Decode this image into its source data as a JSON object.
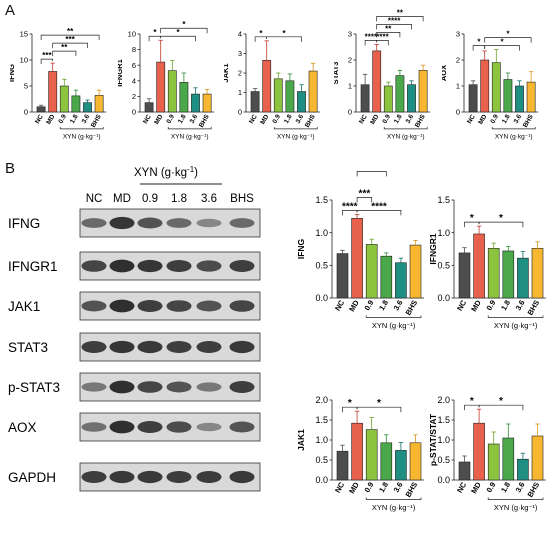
{
  "panels": {
    "a": "A",
    "b": "B"
  },
  "colors": {
    "NC": "#4d4d4d",
    "MD": "#e8614d",
    "0.9": "#8dc43f",
    "1.8": "#4aa84a",
    "3.6": "#1f8f84",
    "BHS": "#f7b731",
    "err_NC": "#4d4d4d",
    "err_MD": "#c0392b",
    "err_0.9": "#6aa32a",
    "err_1.8": "#2f8a35",
    "err_3.6": "#13706a",
    "err_BHS": "#d8951a"
  },
  "blot": {
    "header_title": "XYN (g·kg",
    "header_exp": "-1",
    "header_close": ")",
    "lanes": [
      "NC",
      "MD",
      "0.9",
      "1.8",
      "3.6",
      "BHS"
    ],
    "rows": [
      {
        "label": "IFNG",
        "intensity": [
          0.55,
          0.9,
          0.7,
          0.55,
          0.35,
          0.55
        ]
      },
      {
        "label": "IFNGR1",
        "intensity": [
          0.8,
          0.95,
          0.9,
          0.85,
          0.75,
          0.85
        ]
      },
      {
        "label": "JAK1",
        "intensity": [
          0.7,
          0.95,
          0.85,
          0.8,
          0.7,
          0.8
        ]
      },
      {
        "label": "STAT3",
        "intensity": [
          0.85,
          0.9,
          0.88,
          0.85,
          0.85,
          0.88
        ]
      },
      {
        "label": "p-STAT3",
        "intensity": [
          0.45,
          0.95,
          0.8,
          0.7,
          0.45,
          0.85
        ]
      },
      {
        "label": "AOX",
        "intensity": [
          0.5,
          0.95,
          0.85,
          0.75,
          0.35,
          0.7
        ]
      },
      {
        "label": "GAPDH",
        "intensity": [
          0.85,
          0.88,
          0.88,
          0.86,
          0.86,
          0.88
        ]
      }
    ]
  },
  "chart_data": [
    {
      "id": "a-ifng",
      "type": "bar",
      "ylabel": "IFNG",
      "ylim": [
        0,
        15
      ],
      "yticks": [
        0,
        5,
        10,
        15
      ],
      "categories": [
        "NC",
        "MD",
        "0.9",
        "1.8",
        "3.6",
        "BHS"
      ],
      "values": [
        1,
        7.8,
        5,
        3.1,
        1.8,
        3.2
      ],
      "errors": [
        0.3,
        1.6,
        1.3,
        1.1,
        0.5,
        1.0
      ],
      "xlabel": "XYN (g·kg⁻¹)",
      "significance": [
        {
          "from": 0,
          "to": 1,
          "label": "***",
          "level": 1
        },
        {
          "from": 1,
          "to": 3,
          "label": "**",
          "level": 2
        },
        {
          "from": 1,
          "to": 4,
          "label": "***",
          "level": 3
        },
        {
          "from": 0,
          "to": 5,
          "label": "**",
          "level": 4
        }
      ]
    },
    {
      "id": "a-ifngr1",
      "type": "bar",
      "ylabel": "IFNGR1",
      "ylim": [
        0,
        10
      ],
      "yticks": [
        0,
        2,
        4,
        6,
        8,
        10
      ],
      "categories": [
        "NC",
        "MD",
        "0.9",
        "1.8",
        "3.6",
        "BHS"
      ],
      "values": [
        1.2,
        6.4,
        5.3,
        3.8,
        2.3,
        2.3
      ],
      "errors": [
        0.5,
        2.8,
        1.3,
        1.2,
        0.8,
        0.6
      ],
      "xlabel": "XYN (g·kg⁻¹)",
      "significance": [
        {
          "from": 0,
          "to": 1,
          "label": "*",
          "level": 1
        },
        {
          "from": 1,
          "to": 4,
          "label": "*",
          "level": 1
        },
        {
          "from": 1,
          "to": 5,
          "label": "*",
          "level": 2
        }
      ]
    },
    {
      "id": "a-jak1",
      "type": "bar",
      "ylabel": "JAK1",
      "ylim": [
        0,
        4
      ],
      "yticks": [
        0,
        1,
        2,
        3,
        4
      ],
      "categories": [
        "NC",
        "MD",
        "0.9",
        "1.8",
        "3.6",
        "BHS"
      ],
      "values": [
        1.05,
        2.65,
        1.7,
        1.6,
        1.05,
        2.1
      ],
      "errors": [
        0.15,
        1.0,
        0.3,
        0.35,
        0.35,
        0.4
      ],
      "xlabel": "XYN (g·kg⁻¹)",
      "significance": [
        {
          "from": 0,
          "to": 1,
          "label": "*",
          "level": 1
        },
        {
          "from": 1,
          "to": 4,
          "label": "*",
          "level": 1
        }
      ]
    },
    {
      "id": "a-stat3",
      "type": "bar",
      "ylabel": "STAT3",
      "ylim": [
        0,
        3
      ],
      "yticks": [
        0,
        1,
        2,
        3
      ],
      "categories": [
        "NC",
        "MD",
        "0.9",
        "1.8",
        "3.6",
        "BHS"
      ],
      "values": [
        1.05,
        2.35,
        1.0,
        1.4,
        1.05,
        1.6
      ],
      "errors": [
        0.4,
        0.25,
        0.15,
        0.2,
        0.15,
        0.2
      ],
      "xlabel": "XYN (g·kg⁻¹)",
      "significance": [
        {
          "from": 0,
          "to": 1,
          "label": "****",
          "level": 1
        },
        {
          "from": 1,
          "to": 2,
          "label": "****",
          "level": 1
        },
        {
          "from": 1,
          "to": 3,
          "label": "**",
          "level": 2
        },
        {
          "from": 1,
          "to": 4,
          "label": "****",
          "level": 3
        },
        {
          "from": 1,
          "to": 5,
          "label": "**",
          "level": 4
        }
      ]
    },
    {
      "id": "a-aox",
      "type": "bar",
      "ylabel": "AOX",
      "ylim": [
        0,
        3
      ],
      "yticks": [
        0,
        1,
        2,
        3
      ],
      "categories": [
        "NC",
        "MD",
        "0.9",
        "1.8",
        "3.6",
        "BHS"
      ],
      "values": [
        1.05,
        2.0,
        1.9,
        1.25,
        1.0,
        1.15
      ],
      "errors": [
        0.15,
        0.35,
        0.5,
        0.25,
        0.2,
        0.4
      ],
      "xlabel": "XYN (g·kg⁻¹)",
      "significance": [
        {
          "from": 0,
          "to": 1,
          "label": "*",
          "level": 1
        },
        {
          "from": 1,
          "to": 4,
          "label": "*",
          "level": 1
        },
        {
          "from": 1,
          "to": 5,
          "label": "*",
          "level": 2
        }
      ]
    },
    {
      "id": "b-ifng",
      "type": "bar",
      "ylabel": "IFNG",
      "ylim": [
        0,
        1.5
      ],
      "yticks": [
        0.0,
        0.5,
        1.0,
        1.5
      ],
      "tickDecimals": 1,
      "categories": [
        "NC",
        "MD",
        "0.9",
        "1.8",
        "3.6",
        "BHS"
      ],
      "values": [
        0.68,
        1.22,
        0.82,
        0.64,
        0.54,
        0.81
      ],
      "errors": [
        0.05,
        0.06,
        0.08,
        0.05,
        0.07,
        0.07
      ],
      "xlabel": "XYN (g·kg⁻¹)",
      "significance": [
        {
          "from": 0,
          "to": 1,
          "label": "****",
          "level": 1
        },
        {
          "from": 1,
          "to": 2,
          "label": "***",
          "level": 2
        },
        {
          "from": 1,
          "to": 3,
          "label": "****",
          "level": 4
        },
        {
          "from": 1,
          "to": 4,
          "label": "****",
          "level": 1
        },
        {
          "from": 1,
          "to": 5,
          "label": "***",
          "level": 6
        }
      ]
    },
    {
      "id": "b-ifngr1",
      "type": "bar",
      "ylabel": "IFNGR1",
      "ylim": [
        0,
        1.5
      ],
      "yticks": [
        0.0,
        0.5,
        1.0,
        1.5
      ],
      "tickDecimals": 1,
      "categories": [
        "NC",
        "MD",
        "0.9",
        "1.8",
        "3.6",
        "BHS"
      ],
      "values": [
        0.69,
        0.98,
        0.76,
        0.72,
        0.61,
        0.76
      ],
      "errors": [
        0.08,
        0.12,
        0.08,
        0.07,
        0.1,
        0.1
      ],
      "xlabel": "XYN (g·kg⁻¹)",
      "significance": [
        {
          "from": 0,
          "to": 1,
          "label": "*",
          "level": 1
        },
        {
          "from": 1,
          "to": 4,
          "label": "*",
          "level": 1
        }
      ]
    },
    {
      "id": "b-jak1",
      "type": "bar",
      "ylabel": "JAK1",
      "ylim": [
        0,
        2.0
      ],
      "yticks": [
        0.0,
        0.5,
        1.0,
        1.5,
        2.0
      ],
      "tickDecimals": 1,
      "categories": [
        "NC",
        "MD",
        "0.9",
        "1.8",
        "3.6",
        "BHS"
      ],
      "values": [
        0.72,
        1.42,
        1.26,
        0.93,
        0.74,
        0.93
      ],
      "errors": [
        0.15,
        0.3,
        0.3,
        0.2,
        0.2,
        0.2
      ],
      "xlabel": "XYN (g·kg⁻¹)",
      "significance": [
        {
          "from": 0,
          "to": 1,
          "label": "*",
          "level": 1
        },
        {
          "from": 1,
          "to": 4,
          "label": "*",
          "level": 1
        }
      ]
    },
    {
      "id": "b-pstat",
      "type": "bar",
      "ylabel": "p-STAT/STAT",
      "ylim": [
        0,
        2.0
      ],
      "yticks": [
        0.0,
        0.5,
        1.0,
        1.5,
        2.0
      ],
      "tickDecimals": 1,
      "categories": [
        "NC",
        "MD",
        "0.9",
        "1.8",
        "3.6",
        "BHS"
      ],
      "values": [
        0.45,
        1.42,
        0.9,
        1.05,
        0.52,
        1.1
      ],
      "errors": [
        0.15,
        0.35,
        0.3,
        0.35,
        0.15,
        0.3
      ],
      "xlabel": "XYN (g·kg⁻¹)",
      "significance": [
        {
          "from": 0,
          "to": 1,
          "label": "*",
          "level": 1
        },
        {
          "from": 1,
          "to": 4,
          "label": "*",
          "level": 1
        }
      ]
    }
  ]
}
